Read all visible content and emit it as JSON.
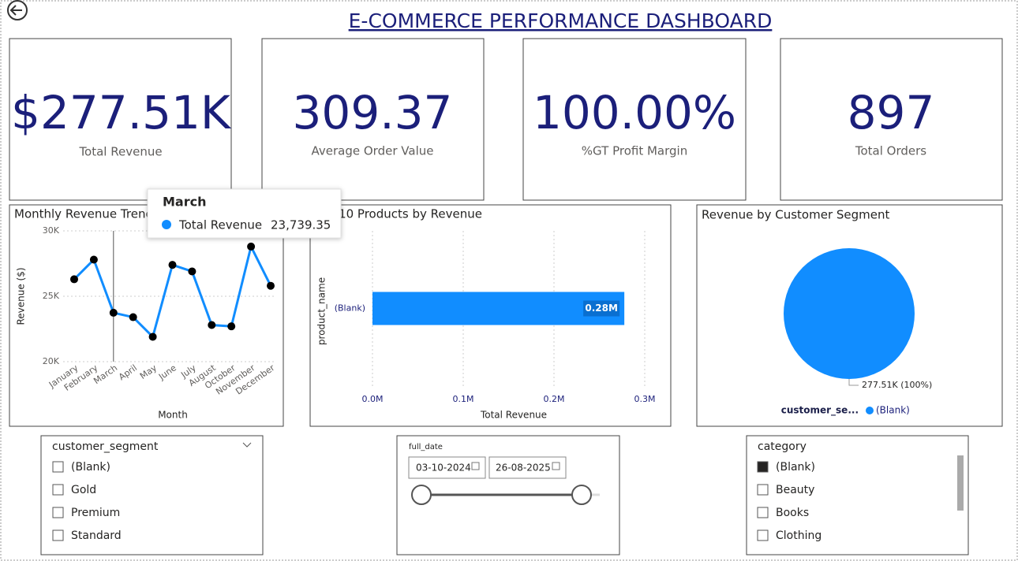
{
  "header": {
    "title": "E-COMMERCE PERFORMANCE DASHBOARD"
  },
  "cards": [
    {
      "value": "$277.51K",
      "label": "Total Revenue"
    },
    {
      "value": "309.37",
      "label": "Average Order Value"
    },
    {
      "value": "100.00%",
      "label": "%GT Profit Margin"
    },
    {
      "value": "897",
      "label": "Total Orders"
    }
  ],
  "chart_data": [
    {
      "type": "line",
      "title": "Monthly Revenue Trend",
      "x_label": "Month",
      "y_label": "Revenue ($)",
      "categories": [
        "January",
        "February",
        "March",
        "April",
        "May",
        "June",
        "July",
        "August",
        "October",
        "November",
        "December"
      ],
      "series": [
        {
          "name": "Total Revenue",
          "color": "#118DFF",
          "marker_color": "#000000",
          "values": [
            26300,
            27800,
            23739.35,
            23400,
            21900,
            27400,
            26900,
            22800,
            22700,
            28800,
            25800
          ]
        }
      ],
      "ylim": [
        20000,
        30000
      ],
      "yticks": [
        {
          "value": 20000,
          "label": "20K"
        },
        {
          "value": 25000,
          "label": "25K"
        },
        {
          "value": 30000,
          "label": "30K"
        }
      ],
      "grid": true,
      "tooltip": {
        "title": "March",
        "name": "Total Revenue",
        "value": 23739.35,
        "value_label": "23,739.35"
      }
    },
    {
      "type": "hbar",
      "title": "Top 10 Products by Revenue",
      "x_label": "Total Revenue",
      "y_label": "product_name",
      "categories": [
        "(Blank)"
      ],
      "values": [
        277510
      ],
      "value_labels": [
        "0.28M"
      ],
      "color": "#118DFF",
      "xlim": [
        0,
        300000
      ],
      "xticks": [
        {
          "value": 0,
          "label": "0.0M"
        },
        {
          "value": 100000,
          "label": "0.1M"
        },
        {
          "value": 200000,
          "label": "0.2M"
        },
        {
          "value": 300000,
          "label": "0.3M"
        }
      ],
      "grid": true
    },
    {
      "type": "pie",
      "title": "Revenue by Customer Segment",
      "legend_title": "customer_se...",
      "categories": [
        "(Blank)"
      ],
      "values": [
        277510
      ],
      "value_labels": [
        "277.51K (100%)"
      ],
      "colors": [
        "#118DFF"
      ]
    }
  ],
  "slicers": {
    "segment": {
      "title": "customer_segment",
      "items": [
        "(Blank)",
        "Gold",
        "Premium",
        "Standard"
      ],
      "checked": [
        false,
        false,
        false,
        false
      ]
    },
    "date": {
      "title": "full_date",
      "start": "03-10-2024",
      "end": "26-08-2025"
    },
    "category": {
      "title": "category",
      "items": [
        "(Blank)",
        "Beauty",
        "Books",
        "Clothing"
      ],
      "checked": [
        true,
        false,
        false,
        false
      ]
    }
  }
}
